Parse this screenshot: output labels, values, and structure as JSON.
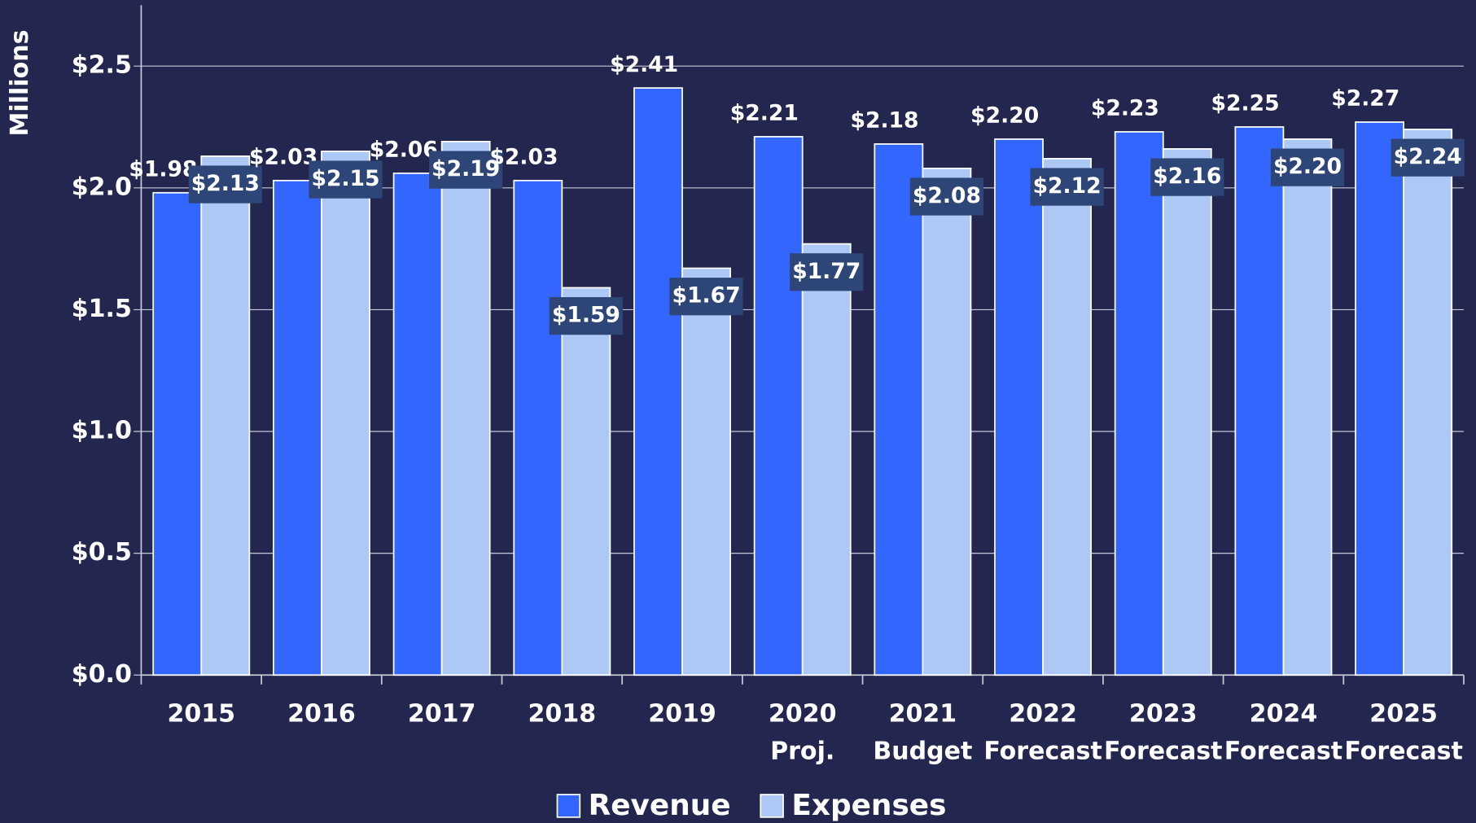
{
  "chart_data": {
    "type": "bar",
    "y_label": "Millions",
    "categories": [
      [
        "2015"
      ],
      [
        "2016"
      ],
      [
        "2017"
      ],
      [
        "2018"
      ],
      [
        "2019"
      ],
      [
        "2020",
        "Proj."
      ],
      [
        "2021",
        "Budget"
      ],
      [
        "2022",
        "Forecast"
      ],
      [
        "2023",
        "Forecast"
      ],
      [
        "2024",
        "Forecast"
      ],
      [
        "2025",
        "Forecast"
      ]
    ],
    "series": [
      {
        "name": "Revenue",
        "color": "#3366ff",
        "values": [
          1.98,
          2.03,
          2.06,
          2.03,
          2.41,
          2.21,
          2.18,
          2.2,
          2.23,
          2.25,
          2.27
        ],
        "value_labels": [
          "$1.98",
          "$2.03",
          "$2.06",
          "$2.03",
          "$2.41",
          "$2.21",
          "$2.18",
          "$2.20",
          "$2.23",
          "$2.25",
          "$2.27"
        ]
      },
      {
        "name": "Expenses",
        "color": "#adc8f5",
        "values": [
          2.13,
          2.15,
          2.19,
          1.59,
          1.67,
          1.77,
          2.08,
          2.12,
          2.16,
          2.2,
          2.24
        ],
        "value_labels": [
          "$2.13",
          "$2.15",
          "$2.19",
          "$1.59",
          "$1.67",
          "$1.77",
          "$2.08",
          "$2.12",
          "$2.16",
          "$2.20",
          "$2.24"
        ]
      }
    ],
    "ylim": [
      0,
      2.75
    ],
    "yticks": [
      {
        "value": 0,
        "label": "$0.0"
      },
      {
        "value": 0.5,
        "label": "$0.5"
      },
      {
        "value": 1,
        "label": "$1.0"
      },
      {
        "value": 1.5,
        "label": "$1.5"
      },
      {
        "value": 2,
        "label": "$2.0"
      },
      {
        "value": 2.5,
        "label": "$2.5"
      }
    ],
    "grid": true,
    "legend": "bottom"
  }
}
